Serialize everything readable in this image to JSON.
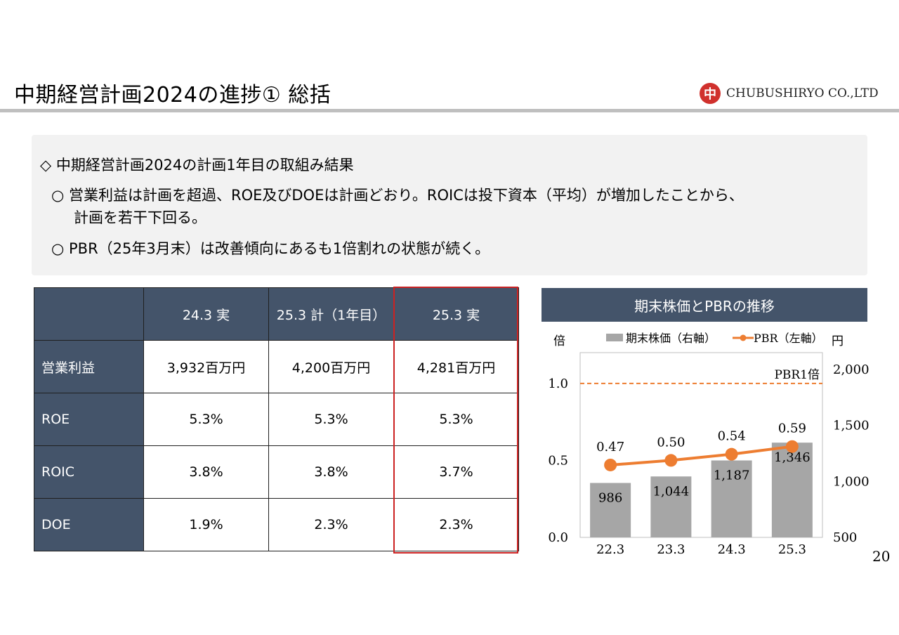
{
  "header": {
    "title": "中期経営計画2024の進捗① 総括",
    "company": "CHUBUSHIRYO CO.,LTD",
    "logo_glyph": "中"
  },
  "summary": {
    "heading": "◇ 中期経営計画2024の計画1年目の取組み結果",
    "bullet1_line1": "○ 営業利益は計画を超過、ROE及びDOEは計画どおり。ROICは投下資本（平均）が増加したことから、",
    "bullet1_line2": "計画を若干下回る。",
    "bullet2": "○ PBR（25年3月末）は改善傾向にあるも1倍割れの状態が続く。"
  },
  "table": {
    "columns": [
      "",
      "24.3 実",
      "25.3 計（1年目）",
      "25.3 実"
    ],
    "rows": [
      {
        "label": "営業利益",
        "values": [
          "3,932百万円",
          "4,200百万円",
          "4,281百万円"
        ]
      },
      {
        "label": "ROE",
        "values": [
          "5.3%",
          "5.3%",
          "5.3%"
        ]
      },
      {
        "label": "ROIC",
        "values": [
          "3.8%",
          "3.8%",
          "3.7%"
        ]
      },
      {
        "label": "DOE",
        "values": [
          "1.9%",
          "2.3%",
          "2.3%"
        ]
      }
    ],
    "highlight_color": "#cc2222",
    "header_color": "#44546a"
  },
  "chart_data": {
    "type": "bar",
    "title": "期末株価とPBRの推移",
    "categories": [
      "22.3",
      "23.3",
      "24.3",
      "25.3"
    ],
    "series": [
      {
        "name": "期末株価（右軸）",
        "kind": "bar",
        "axis": "right",
        "values": [
          986,
          1044,
          1187,
          1346
        ],
        "color": "#a6a6a6"
      },
      {
        "name": "PBR（左軸）",
        "kind": "line",
        "axis": "left",
        "values": [
          0.47,
          0.5,
          0.54,
          0.59
        ],
        "color": "#ed7d31"
      }
    ],
    "left_axis": {
      "label": "倍",
      "ticks": [
        "0.0",
        "0.5",
        "1.0"
      ],
      "range": [
        0,
        1.2
      ]
    },
    "right_axis": {
      "label": "円",
      "ticks": [
        "500",
        "1,000",
        "1,500",
        "2,000"
      ],
      "range": [
        500,
        2150
      ]
    },
    "reference_line": {
      "value": 1.0,
      "label": "PBR1倍",
      "color": "#ed7d31"
    },
    "legend_position": "top"
  },
  "page_number": "20"
}
